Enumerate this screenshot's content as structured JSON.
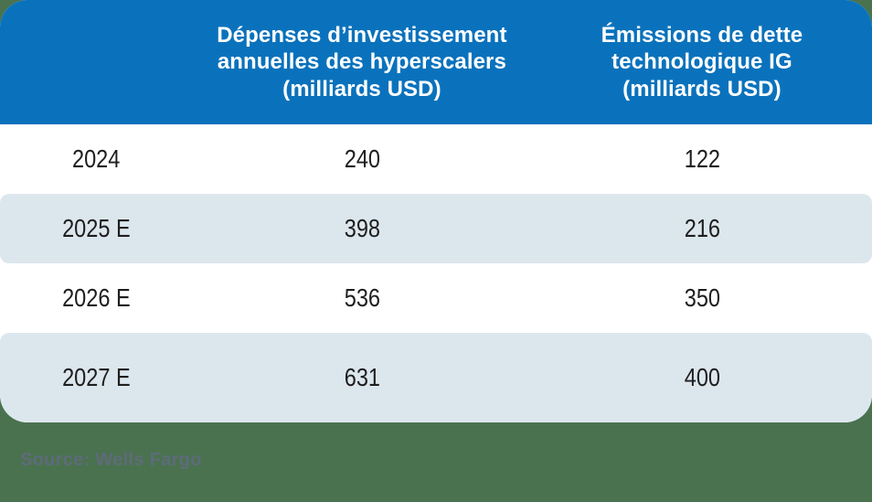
{
  "table": {
    "header": {
      "year_col": "",
      "capex": "Dépenses d’investissement annuelles des hyperscalers (milliards USD)",
      "debt": "Émissions de dette technologique IG (milliards USD)"
    },
    "rows": [
      {
        "year": "2024",
        "capex": "240",
        "debt": "122"
      },
      {
        "year": "2025 E",
        "capex": "398",
        "debt": "216"
      },
      {
        "year": "2026 E",
        "capex": "536",
        "debt": "350"
      },
      {
        "year": "2027 E",
        "capex": "631",
        "debt": "400"
      }
    ]
  },
  "source": "Source: Wells Fargo",
  "colors": {
    "header-blue": "#0A72BC",
    "header-text": "#FFFFFF",
    "stripe": "#DCE7ED",
    "page-green": "#4A724F",
    "body-text": "#1E1E1E",
    "source-text": "#5E6B79"
  },
  "chart_data": {
    "type": "table",
    "categories": [
      "2024",
      "2025 E",
      "2026 E",
      "2027 E"
    ],
    "series": [
      {
        "name": "Dépenses d’investissement annuelles des hyperscalers (milliards USD)",
        "values": [
          240,
          398,
          536,
          631
        ]
      },
      {
        "name": "Émissions de dette technologique IG (milliards USD)",
        "values": [
          122,
          216,
          350,
          400
        ]
      }
    ],
    "title": "",
    "source": "Source: Wells Fargo",
    "layout": "striped table, blue header, rounded card on green background"
  }
}
